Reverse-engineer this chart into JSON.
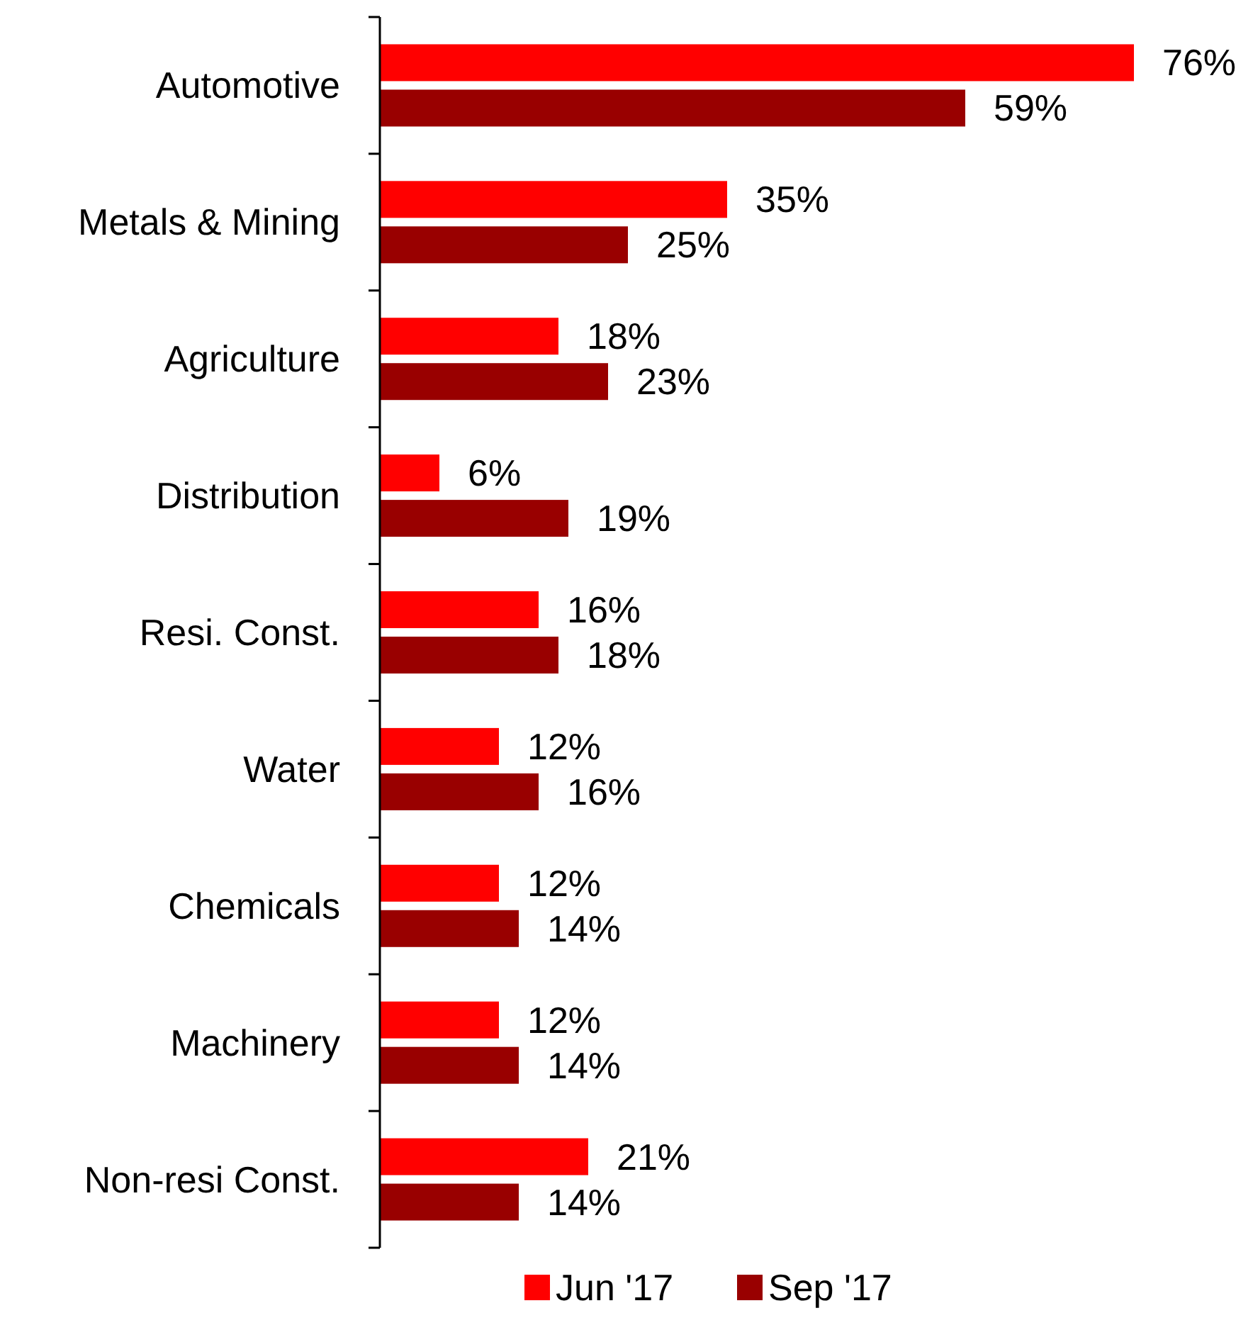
{
  "chart_data": {
    "type": "bar",
    "orientation": "horizontal",
    "categories": [
      "Automotive",
      "Metals & Mining",
      "Agriculture",
      "Distribution",
      "Resi. Const.",
      "Water",
      "Chemicals",
      "Machinery",
      "Non-resi Const."
    ],
    "series": [
      {
        "name": "Jun '17",
        "color": "#ff0000",
        "values": [
          76,
          35,
          18,
          6,
          16,
          12,
          12,
          12,
          21
        ],
        "value_labels": [
          "76%",
          "35%",
          "18%",
          "6%",
          "16%",
          "12%",
          "12%",
          "12%",
          "21%"
        ]
      },
      {
        "name": "Sep '17",
        "color": "#990000",
        "values": [
          59,
          25,
          23,
          19,
          18,
          16,
          14,
          14,
          14
        ],
        "value_labels": [
          "59%",
          "25%",
          "23%",
          "19%",
          "18%",
          "16%",
          "14%",
          "14%",
          "14%"
        ]
      }
    ],
    "legend": "bottom",
    "tick_labels": "y"
  }
}
